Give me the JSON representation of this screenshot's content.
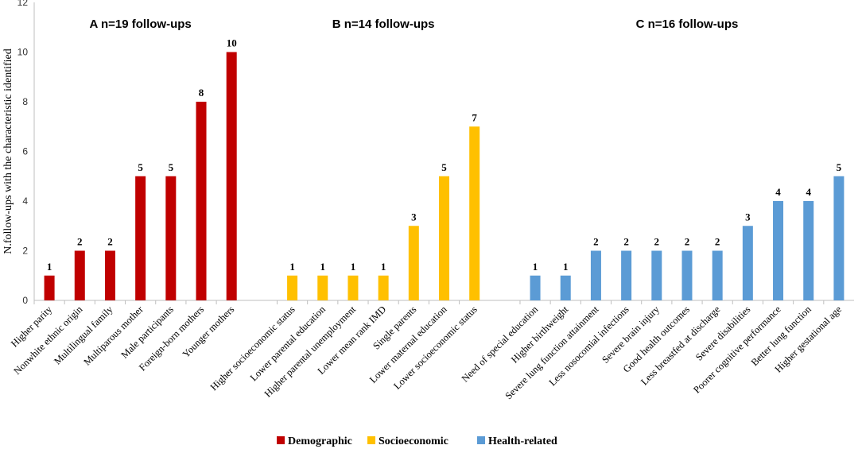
{
  "chart_data": {
    "type": "bar",
    "ylabel": "N.follow-ups with the characteristic identified",
    "ylim": [
      0,
      12
    ],
    "yticks": [
      0,
      2,
      4,
      6,
      8,
      10,
      12
    ],
    "grid": false,
    "legend_position": "bottom-center",
    "colors": {
      "Demographic": "#c00000",
      "Socioeconomic": "#ffc000",
      "Health-related": "#5b9bd5"
    },
    "panels": [
      {
        "letter": "A",
        "title": "n=19 follow-ups",
        "series": "Demographic",
        "categories": [
          "Higher parity",
          "Nonwhite ethnic origin",
          "Multilingual family",
          "Multiparous mother",
          "Male participants",
          "Foreign-born mothers",
          "Younger mothers"
        ],
        "values": [
          1,
          2,
          2,
          5,
          5,
          8,
          10
        ]
      },
      {
        "letter": "B",
        "title": "n=14 follow-ups",
        "series": "Socioeconomic",
        "categories": [
          "Higher socioeconomic status",
          "Lower parental education",
          "Higher parental unemployment",
          "Lower mean rank IMD",
          "Single parents",
          "Lower maternal education",
          "Lower socioeconomic status"
        ],
        "values": [
          1,
          1,
          1,
          1,
          3,
          5,
          7
        ]
      },
      {
        "letter": "C",
        "title": "n=16 follow-ups",
        "series": "Health-related",
        "categories": [
          "Need of special education",
          "Higher birthweight",
          "Severe lung function attainment",
          "Less nosocomial infections",
          "Severe brain injury",
          "Good health outcomes",
          "Less breastfed at discharge",
          "Severe disabilities",
          "Poorer cognitive performance",
          "Better lung function",
          "Higher gestational age"
        ],
        "values": [
          1,
          1,
          2,
          2,
          2,
          2,
          2,
          3,
          4,
          4,
          5
        ]
      }
    ],
    "legend": [
      "Demographic",
      "Socioeconomic",
      "Health-related"
    ]
  }
}
